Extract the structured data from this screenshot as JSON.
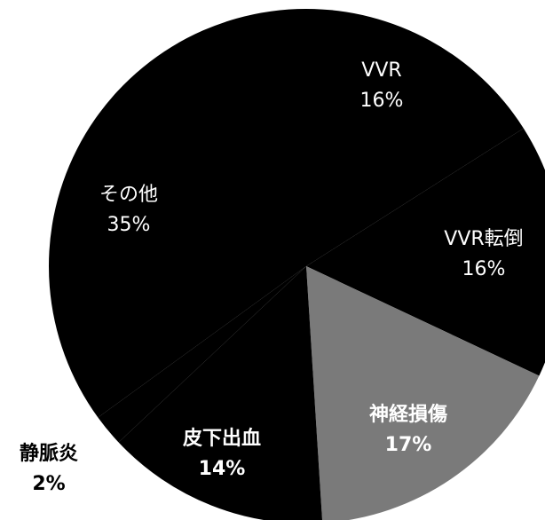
{
  "chart_data": {
    "type": "pie",
    "categories": [
      "VVR",
      "VVR転倒",
      "神経損傷",
      "皮下出血",
      "静脈炎",
      "その他"
    ],
    "values": [
      16,
      16,
      17,
      14,
      2,
      35
    ],
    "value_labels": [
      "16%",
      "16%",
      "17%",
      "14%",
      "2%",
      "35%"
    ],
    "colors": [
      "#000000",
      "#000000",
      "#7a7a7a",
      "#000000",
      "#000000",
      "#000000"
    ]
  }
}
